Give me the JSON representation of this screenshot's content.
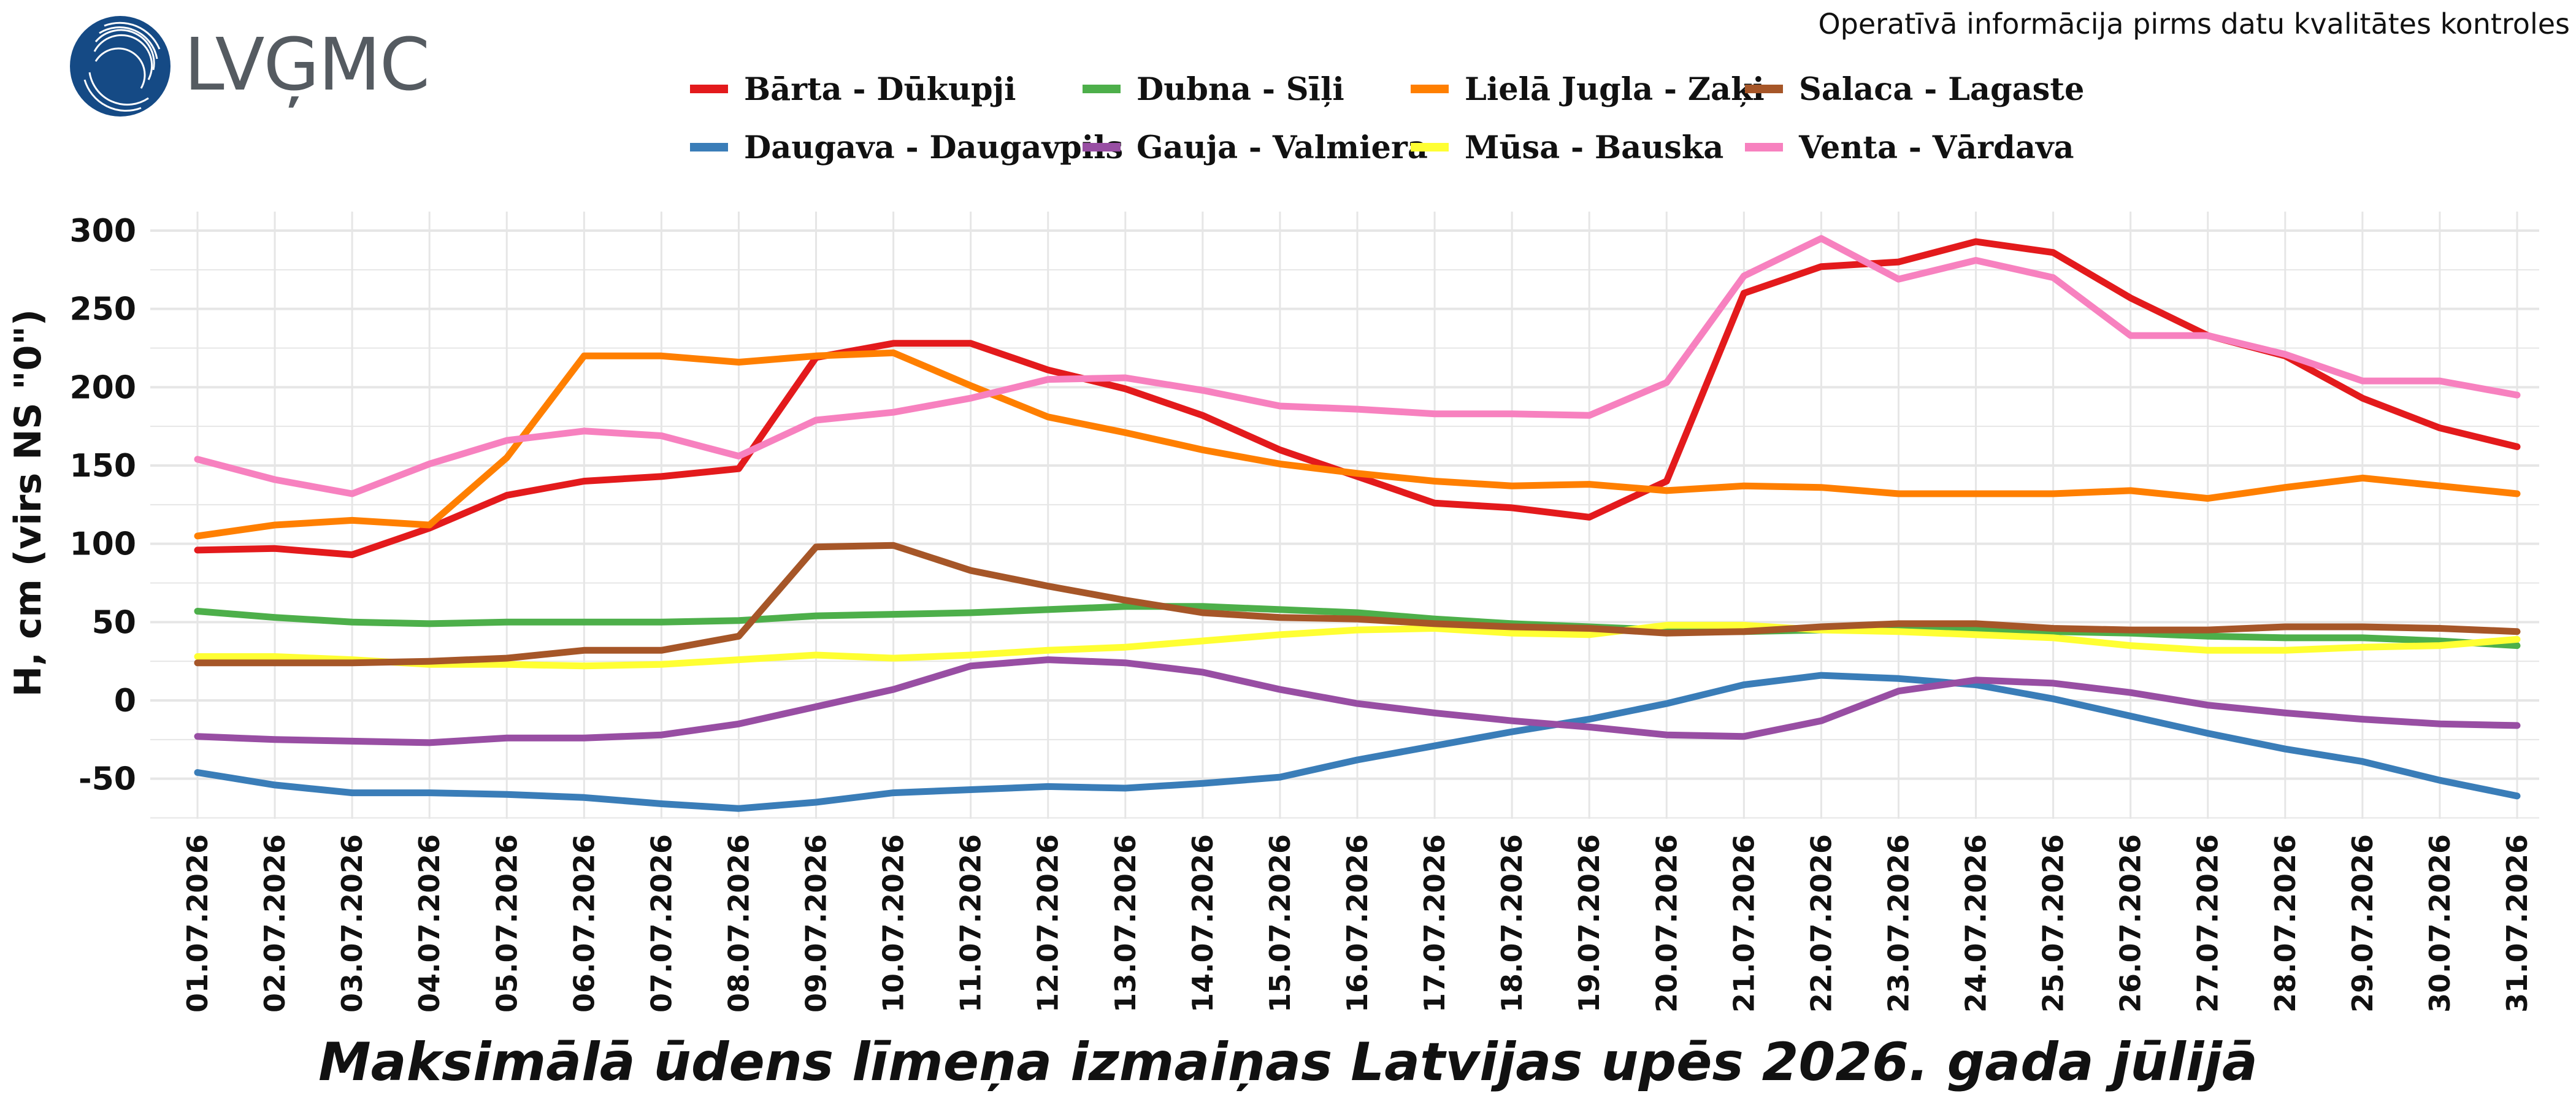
{
  "header": {
    "logo_text": "LVĢMC",
    "note": "Operatīvā informācija pirms datu kvalitātes kontroles"
  },
  "colors": {
    "logo_blue": "#154a85",
    "logo_text": "#555b61",
    "grid": "#e6e6e6"
  },
  "chart_data": {
    "type": "line",
    "title": "Maksimālā ūdens līmeņa izmaiņas Latvijas upēs 2026. gada jūlijā",
    "ylabel": "H, cm (virs NS \"0\")",
    "xlabel": "",
    "ylim": [
      -75,
      310
    ],
    "yticks": [
      -50,
      0,
      50,
      100,
      150,
      200,
      250,
      300
    ],
    "grid": true,
    "legend_position": "top-center",
    "x": [
      "01.07.2026",
      "02.07.2026",
      "03.07.2026",
      "04.07.2026",
      "05.07.2026",
      "06.07.2026",
      "07.07.2026",
      "08.07.2026",
      "09.07.2026",
      "10.07.2026",
      "11.07.2026",
      "12.07.2026",
      "13.07.2026",
      "14.07.2026",
      "15.07.2026",
      "16.07.2026",
      "17.07.2026",
      "18.07.2026",
      "19.07.2026",
      "20.07.2026",
      "21.07.2026",
      "22.07.2026",
      "23.07.2026",
      "24.07.2026",
      "25.07.2026",
      "26.07.2026",
      "27.07.2026",
      "28.07.2026",
      "29.07.2026",
      "30.07.2026",
      "31.07.2026"
    ],
    "series": [
      {
        "name": "Bārta - Dūkupji",
        "color": "#e31a1c",
        "values": [
          96,
          97,
          93,
          110,
          131,
          140,
          143,
          148,
          219,
          228,
          228,
          211,
          199,
          182,
          160,
          143,
          126,
          123,
          117,
          140,
          260,
          277,
          280,
          293,
          286,
          257,
          233,
          220,
          193,
          174,
          162
        ]
      },
      {
        "name": "Daugava - Daugavpils",
        "color": "#3a7db8",
        "values": [
          -46,
          -54,
          -59,
          -59,
          -60,
          -62,
          -66,
          -69,
          -65,
          -59,
          -57,
          -55,
          -56,
          -53,
          -49,
          -38,
          -29,
          -20,
          -12,
          -2,
          10,
          16,
          14,
          10,
          1,
          -10,
          -21,
          -31,
          -39,
          -51,
          -61
        ]
      },
      {
        "name": "Dubna - Sīļi",
        "color": "#4daf4a",
        "values": [
          57,
          53,
          50,
          49,
          50,
          50,
          50,
          51,
          54,
          55,
          56,
          58,
          60,
          60,
          58,
          56,
          52,
          49,
          47,
          45,
          44,
          45,
          46,
          45,
          44,
          43,
          41,
          40,
          40,
          38,
          35
        ]
      },
      {
        "name": "Gauja - Valmiera",
        "color": "#984ea3",
        "values": [
          -23,
          -25,
          -26,
          -27,
          -24,
          -24,
          -22,
          -15,
          -4,
          7,
          22,
          26,
          24,
          18,
          7,
          -2,
          -8,
          -13,
          -17,
          -22,
          -23,
          -13,
          6,
          13,
          11,
          5,
          -3,
          -8,
          -12,
          -15,
          -16
        ]
      },
      {
        "name": "Lielā Jugla - Zaķi",
        "color": "#ff7f00",
        "values": [
          105,
          112,
          115,
          112,
          155,
          220,
          220,
          216,
          220,
          222,
          201,
          181,
          171,
          160,
          151,
          145,
          140,
          137,
          138,
          134,
          137,
          136,
          132,
          132,
          132,
          134,
          129,
          136,
          142,
          137,
          132
        ]
      },
      {
        "name": "Mūsa - Bauska",
        "color": "#ffff33",
        "values": [
          28,
          28,
          26,
          23,
          23,
          22,
          23,
          26,
          29,
          27,
          29,
          32,
          34,
          38,
          42,
          45,
          46,
          43,
          42,
          48,
          48,
          45,
          44,
          42,
          40,
          35,
          32,
          32,
          34,
          35,
          39
        ]
      },
      {
        "name": "Salaca - Lagaste",
        "color": "#a65628",
        "values": [
          24,
          24,
          24,
          25,
          27,
          32,
          32,
          41,
          98,
          99,
          83,
          73,
          64,
          56,
          53,
          52,
          49,
          47,
          46,
          43,
          44,
          47,
          49,
          49,
          46,
          45,
          45,
          47,
          47,
          46,
          44
        ]
      },
      {
        "name": "Venta - Vārdava",
        "color": "#f781bf",
        "values": [
          154,
          141,
          132,
          151,
          166,
          172,
          169,
          156,
          179,
          184,
          193,
          205,
          206,
          198,
          188,
          186,
          183,
          183,
          182,
          203,
          271,
          295,
          269,
          281,
          270,
          233,
          233,
          221,
          204,
          204,
          195
        ]
      }
    ]
  }
}
